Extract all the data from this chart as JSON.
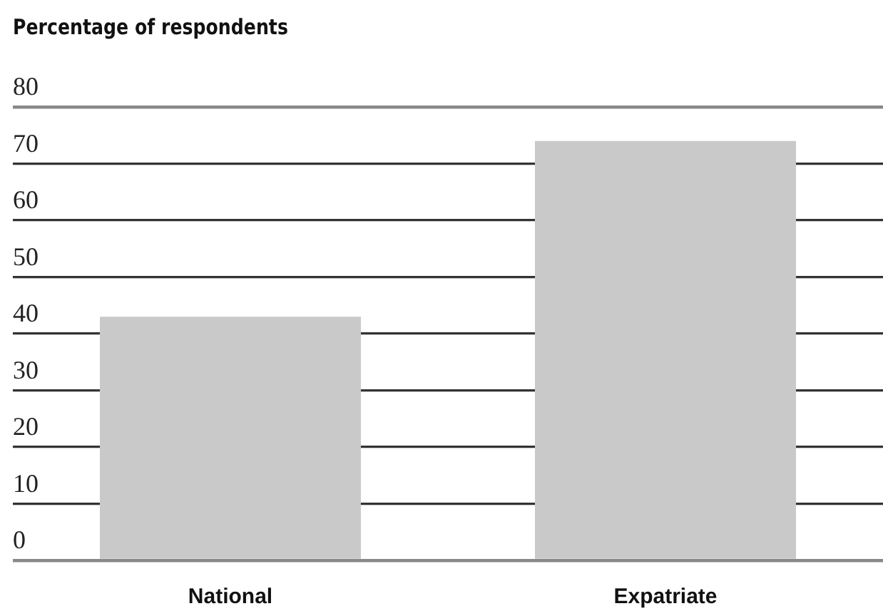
{
  "chart_data": {
    "type": "bar",
    "ylabel": "Percentage of respondents",
    "categories": [
      "National",
      "Expatriate"
    ],
    "values": [
      43,
      74
    ],
    "color": "#c9c9c9",
    "ylim": [
      0,
      80
    ],
    "yticks": [
      0,
      10,
      20,
      30,
      40,
      50,
      60,
      70,
      80
    ],
    "grid": "y"
  }
}
